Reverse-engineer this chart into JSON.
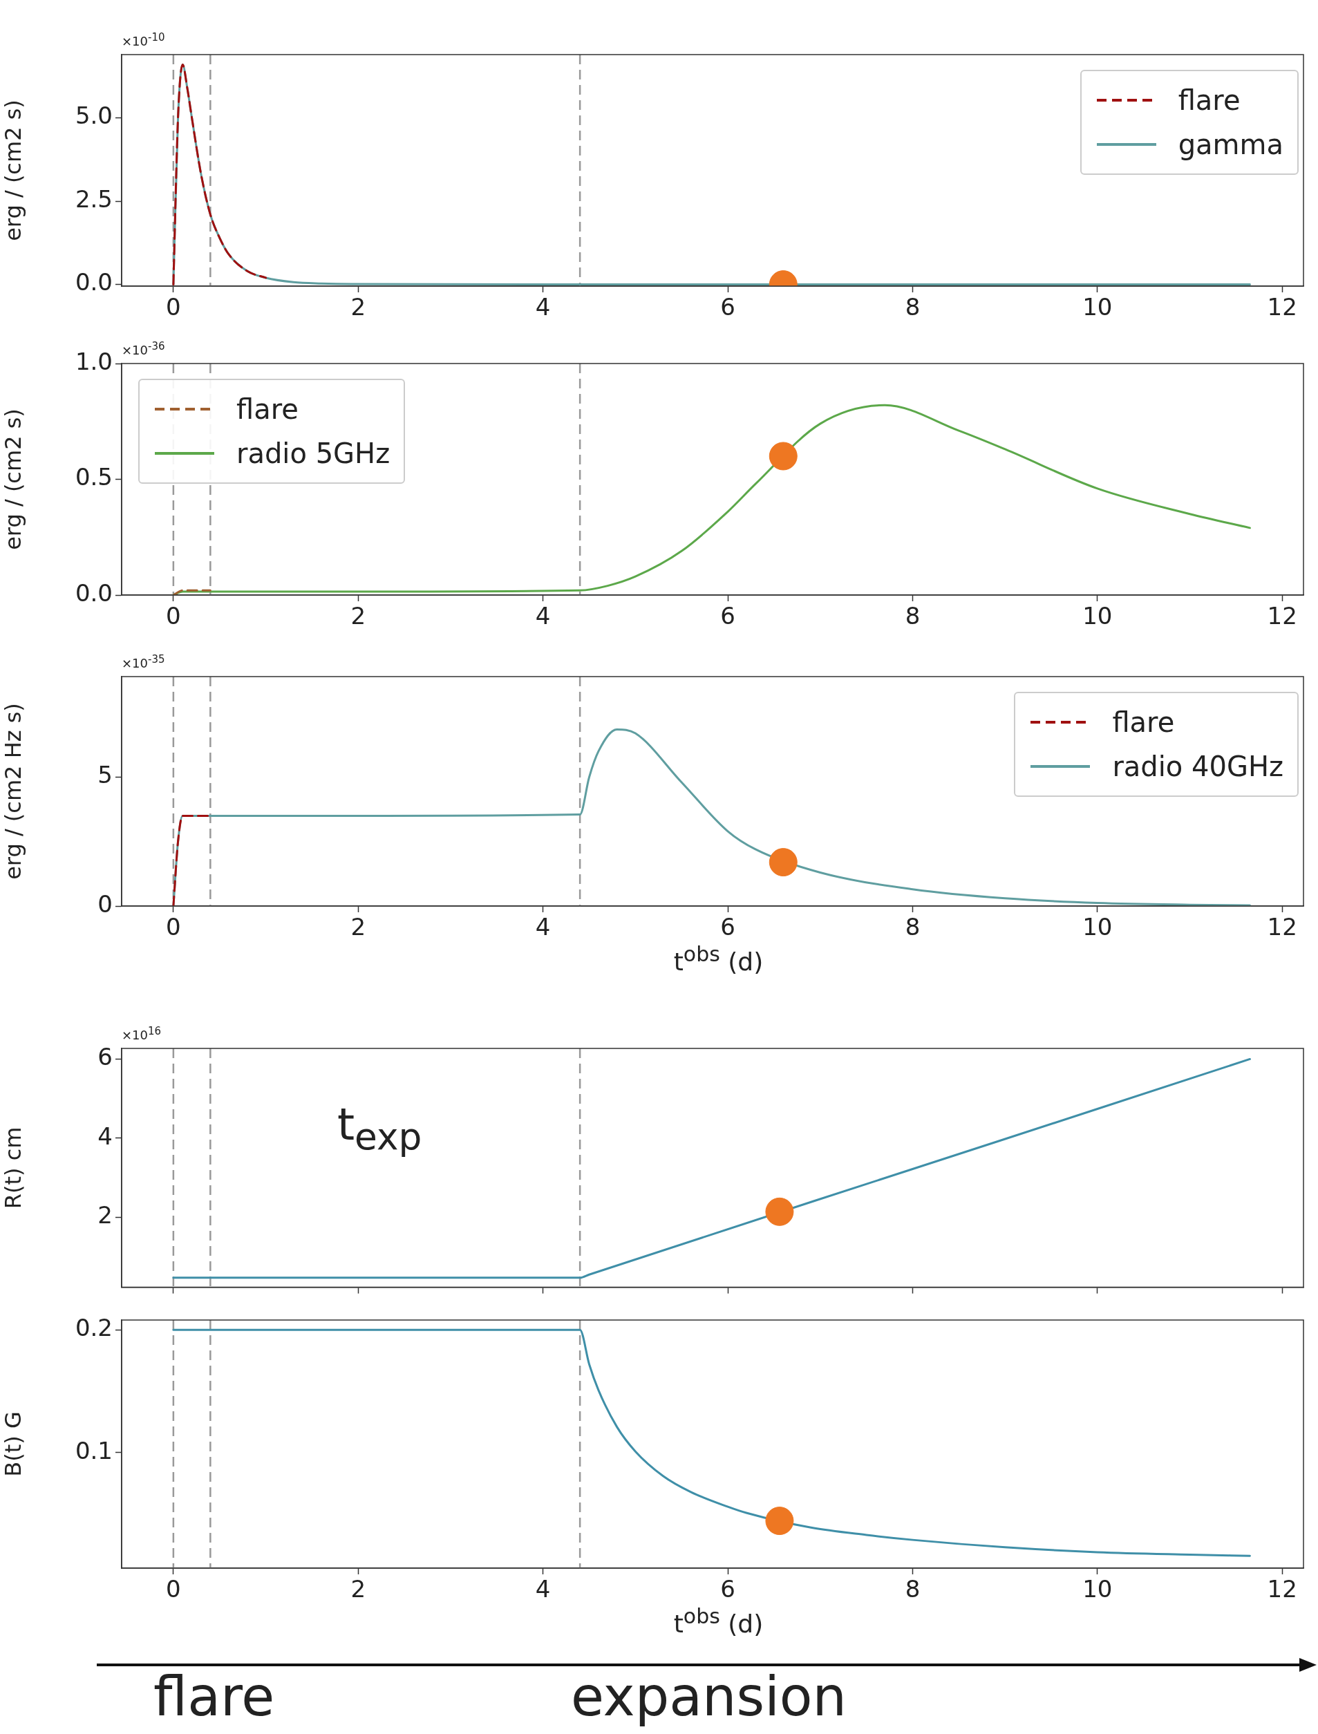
{
  "chart_data": [
    {
      "type": "line",
      "ylabel": "erg / (cm2 s)",
      "legend": "top right",
      "xlim": [
        -0.56,
        12.23
      ],
      "xticks": [
        0,
        2,
        4,
        6,
        8,
        10,
        12
      ],
      "ylim": [
        -0.05,
        6.9
      ],
      "yticks": [
        {
          "value": 0,
          "label": "0.0"
        },
        {
          "value": 2.5,
          "label": "2.5"
        },
        {
          "value": 5,
          "label": "5.0"
        }
      ],
      "ref_lines": [
        {
          "axis": "x",
          "value": 0,
          "color": "#999999",
          "line_style": "dashed"
        },
        {
          "axis": "x",
          "value": 0.4,
          "color": "#999999",
          "line_style": "dashed"
        },
        {
          "axis": "x",
          "value": 4.4,
          "color": "#999999",
          "line_style": "dashed"
        }
      ],
      "annotations": [
        "×10$^{-10}$"
      ],
      "series": [
        {
          "name": "flare",
          "color": "#a01010",
          "line_style": "dashed",
          "x": [
            0,
            0.05,
            0.1,
            0.15,
            0.2,
            0.3,
            0.4,
            0.5,
            0.6,
            0.8,
            1.0
          ],
          "values": [
            0,
            5.0,
            6.6,
            5.9,
            5.0,
            3.3,
            2.1,
            1.4,
            0.9,
            0.4,
            0.2
          ]
        },
        {
          "name": "gamma",
          "color": "#5f9ea0",
          "x": [
            0,
            0.05,
            0.1,
            0.15,
            0.2,
            0.3,
            0.4,
            0.5,
            0.6,
            0.8,
            1.0,
            1.3,
            1.6,
            2.0,
            4,
            6,
            8,
            10,
            11.65
          ],
          "values": [
            0,
            5.0,
            6.6,
            5.9,
            5.0,
            3.3,
            2.1,
            1.4,
            0.9,
            0.4,
            0.2,
            0.07,
            0.03,
            0.01,
            0,
            0,
            0,
            0,
            0
          ]
        },
        {
          "type": "scatter",
          "color": "#ee7722",
          "marker": "circle",
          "x": [
            6.6
          ],
          "values": [
            0
          ]
        }
      ]
    },
    {
      "type": "line",
      "ylabel": "erg / (cm2 s)",
      "legend": "top left",
      "xlim": [
        -0.56,
        12.23
      ],
      "xticks": [
        0,
        2,
        4,
        6,
        8,
        10,
        12
      ],
      "ylim": [
        0,
        1
      ],
      "yticks": [
        {
          "value": 0,
          "label": "0.0"
        },
        {
          "value": 0.5,
          "label": "0.5"
        },
        {
          "value": 1,
          "label": "1.0"
        }
      ],
      "ref_lines": [
        {
          "axis": "x",
          "value": 0,
          "color": "#999999",
          "line_style": "dashed"
        },
        {
          "axis": "x",
          "value": 0.4,
          "color": "#999999",
          "line_style": "dashed"
        },
        {
          "axis": "x",
          "value": 4.4,
          "color": "#999999",
          "line_style": "dashed"
        }
      ],
      "annotations": [
        "×10$^{-36}$"
      ],
      "series": [
        {
          "name": "flare",
          "color": "#a06030",
          "line_style": "dashed",
          "x": [
            0,
            0.1,
            0.4
          ],
          "values": [
            0,
            0.02,
            0.02
          ]
        },
        {
          "name": "radio 5GHz",
          "color": "#5ca84a",
          "x": [
            0,
            0.1,
            0.4,
            2,
            4.4,
            4.7,
            5,
            5.5,
            6,
            6.3,
            7,
            7.7,
            8.5,
            9,
            10,
            11,
            11.65
          ],
          "values": [
            0,
            0.015,
            0.015,
            0.015,
            0.02,
            0.04,
            0.08,
            0.19,
            0.36,
            0.48,
            0.74,
            0.82,
            0.71,
            0.63,
            0.46,
            0.35,
            0.29
          ]
        },
        {
          "type": "scatter",
          "color": "#ee7722",
          "marker": "circle",
          "x": [
            6.6
          ],
          "values": [
            0.6
          ]
        }
      ]
    },
    {
      "type": "line",
      "ylabel": "erg / (cm2 Hz s)",
      "xlabel": "t$^{obs}$ (d)",
      "legend": "top right",
      "xlim": [
        -0.56,
        12.23
      ],
      "xticks": [
        0,
        2,
        4,
        6,
        8,
        10,
        12
      ],
      "ylim": [
        0,
        8.9
      ],
      "yticks": [
        0,
        5
      ],
      "ref_lines": [
        {
          "axis": "x",
          "value": 0,
          "color": "#999999",
          "line_style": "dashed"
        },
        {
          "axis": "x",
          "value": 0.4,
          "color": "#999999",
          "line_style": "dashed"
        },
        {
          "axis": "x",
          "value": 4.4,
          "color": "#999999",
          "line_style": "dashed"
        }
      ],
      "annotations": [
        "×10$^{-35}$"
      ],
      "series": [
        {
          "name": "flare",
          "color": "#a01010",
          "line_style": "dashed",
          "x": [
            0,
            0.05,
            0.1,
            0.4
          ],
          "values": [
            0,
            2.5,
            3.5,
            3.5
          ]
        },
        {
          "name": "radio 40GHz",
          "color": "#5f9ea0",
          "x": [
            0,
            0.05,
            0.1,
            0.4,
            2,
            4.4,
            4.5,
            4.6,
            4.8,
            5.0,
            5.5,
            6,
            6.3,
            7,
            8,
            9,
            10,
            11,
            11.65
          ],
          "values": [
            0,
            2.5,
            3.5,
            3.5,
            3.5,
            3.55,
            5.0,
            6.0,
            6.85,
            6.7,
            4.8,
            2.9,
            2.2,
            1.3,
            0.65,
            0.3,
            0.12,
            0.05,
            0.03
          ]
        },
        {
          "type": "scatter",
          "color": "#ee7722",
          "marker": "circle",
          "x": [
            6.6
          ],
          "values": [
            1.7
          ]
        }
      ]
    },
    {
      "type": "line",
      "ylabel": "R(t) cm",
      "tick_labels": "y",
      "xlim": [
        -0.56,
        12.23
      ],
      "xticks": [
        0,
        2,
        4,
        6,
        8,
        10,
        12
      ],
      "ylim": [
        0.23,
        6.27
      ],
      "yticks": [
        2,
        4,
        6
      ],
      "ref_lines": [
        {
          "axis": "x",
          "value": 0,
          "color": "#999999",
          "line_style": "dashed"
        },
        {
          "axis": "x",
          "value": 0.4,
          "color": "#999999",
          "line_style": "dashed"
        },
        {
          "axis": "x",
          "value": 4.4,
          "color": "#999999",
          "line_style": "dashed"
        }
      ],
      "annotations": [
        "×10$^{16}$",
        "t$_{exp}$"
      ],
      "series": [
        {
          "color": "#3f8fa8",
          "x": [
            0,
            4.4,
            4.5,
            8,
            10,
            11.65
          ],
          "values": [
            0.47,
            0.47,
            0.55,
            3.22,
            4.74,
            6.0
          ]
        },
        {
          "type": "scatter",
          "color": "#ee7722",
          "marker": "circle",
          "x": [
            6.56
          ],
          "values": [
            2.14
          ]
        }
      ]
    },
    {
      "type": "line",
      "ylabel": "B(t) G",
      "xlabel": "t$^{obs}$ (d)",
      "xlim": [
        -0.56,
        12.23
      ],
      "xticks": [
        0,
        2,
        4,
        6,
        8,
        10,
        12
      ],
      "ylim": [
        0.006,
        0.208
      ],
      "yticks": [
        0.1,
        0.2
      ],
      "ref_lines": [
        {
          "axis": "x",
          "value": 0,
          "color": "#999999",
          "line_style": "dashed"
        },
        {
          "axis": "x",
          "value": 0.4,
          "color": "#999999",
          "line_style": "dashed"
        },
        {
          "axis": "x",
          "value": 4.4,
          "color": "#999999",
          "line_style": "dashed"
        }
      ],
      "annotations": [
        "flare",
        "expansion"
      ],
      "series": [
        {
          "color": "#3f8fa8",
          "x": [
            0,
            4.4,
            4.5,
            4.6,
            4.8,
            5.0,
            5.3,
            5.6,
            6.0,
            6.2,
            6.9,
            7.5,
            8,
            9,
            10,
            11,
            11.65
          ],
          "values": [
            0.2,
            0.2,
            0.172,
            0.151,
            0.121,
            0.101,
            0.081,
            0.068,
            0.056,
            0.051,
            0.039,
            0.033,
            0.029,
            0.023,
            0.019,
            0.017,
            0.016
          ]
        },
        {
          "type": "scatter",
          "color": "#ee7722",
          "marker": "circle",
          "x": [
            6.56
          ],
          "values": [
            0.0445
          ]
        }
      ]
    }
  ]
}
